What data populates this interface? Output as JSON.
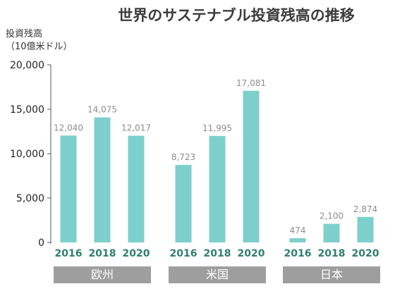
{
  "chart_data": {
    "type": "bar",
    "title": "世界のサステナブル投資残高の推移",
    "ylabel": [
      "投資残高",
      "（10億米ドル）"
    ],
    "ylim": [
      0,
      20000
    ],
    "yticks": [
      "0",
      "5,000",
      "10,000",
      "15,000",
      "20,000"
    ],
    "grid": false,
    "bar_color": "#7dcfcb",
    "axis_color": "#555555",
    "category_color": "#2f7f6f",
    "label_color": "#8c8c8c",
    "region_color": "#9e9e9e",
    "groups": [
      {
        "region": "欧州",
        "categories": [
          "2016",
          "2018",
          "2020"
        ],
        "values": [
          12040,
          14075,
          12017
        ],
        "labels": [
          "12,040",
          "14,075",
          "12,017"
        ]
      },
      {
        "region": "米国",
        "categories": [
          "2016",
          "2018",
          "2020"
        ],
        "values": [
          8723,
          11995,
          17081
        ],
        "labels": [
          "8,723",
          "11,995",
          "17,081"
        ]
      },
      {
        "region": "日本",
        "categories": [
          "2016",
          "2018",
          "2020"
        ],
        "values": [
          474,
          2100,
          2874
        ],
        "labels": [
          "474",
          "2,100",
          "2,874"
        ]
      }
    ]
  }
}
